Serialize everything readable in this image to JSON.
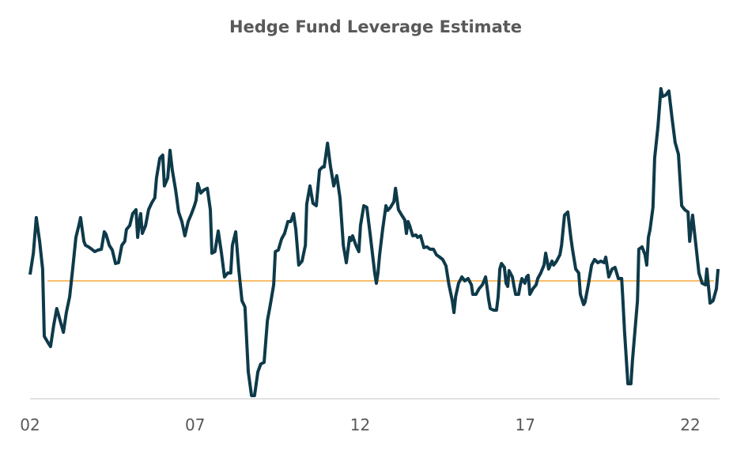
{
  "chart_data": {
    "type": "line",
    "title": "Hedge Fund Leverage Estimate",
    "xlabel": "",
    "ylabel": "",
    "x_tick_labels": [
      {
        "value": 2002,
        "label": "02"
      },
      {
        "value": 2007,
        "label": "07"
      },
      {
        "value": 2012,
        "label": "12"
      },
      {
        "value": 2017,
        "label": "17"
      },
      {
        "value": 2022,
        "label": "22"
      }
    ],
    "xlim": [
      2002,
      2022.9
    ],
    "ylim": [
      -15,
      26
    ],
    "y_axis_labels_shown": false,
    "grid": false,
    "legend": "none",
    "colors": {
      "series": "#0e3a4a",
      "average": "#f5a93a",
      "axis": "#d9d9d9",
      "text": "#595959"
    },
    "average_line": {
      "value": 0,
      "x": [
        2002.53,
        2022.72
      ]
    },
    "series": [
      {
        "x": [
          2002.0,
          2002.1,
          2002.19,
          2002.29,
          2002.38,
          2002.43,
          2002.53,
          2002.62,
          2002.72,
          2002.81,
          2002.91,
          2003.01,
          2003.1,
          2003.2,
          2003.29,
          2003.39,
          2003.49,
          2003.53,
          2003.63,
          2003.68,
          2003.77,
          2003.87,
          2003.96,
          2004.06,
          2004.16,
          2004.25,
          2004.3,
          2004.4,
          2004.49,
          2004.59,
          2004.68,
          2004.78,
          2004.87,
          2004.92,
          2005.02,
          2005.11,
          2005.21,
          2005.26,
          2005.31,
          2005.35,
          2005.4,
          2005.5,
          2005.59,
          2005.69,
          2005.78,
          2005.83,
          2005.93,
          2006.02,
          2006.07,
          2006.17,
          2006.24,
          2006.31,
          2006.41,
          2006.5,
          2006.6,
          2006.69,
          2006.79,
          2006.89,
          2006.98,
          2007.03,
          2007.08,
          2007.17,
          2007.27,
          2007.37,
          2007.46,
          2007.51,
          2007.6,
          2007.7,
          2007.8,
          2007.89,
          2007.99,
          2008.08,
          2008.13,
          2008.23,
          2008.32,
          2008.42,
          2008.51,
          2008.61,
          2008.71,
          2008.8,
          2008.9,
          2008.99,
          2009.09,
          2009.19,
          2009.28,
          2009.38,
          2009.43,
          2009.52,
          2009.62,
          2009.71,
          2009.81,
          2009.9,
          2009.98,
          2010.05,
          2010.14,
          2010.24,
          2010.34,
          2010.38,
          2010.48,
          2010.57,
          2010.67,
          2010.77,
          2010.86,
          2010.91,
          2011.01,
          2011.1,
          2011.2,
          2011.29,
          2011.39,
          2011.49,
          2011.58,
          2011.68,
          2011.72,
          2011.77,
          2011.87,
          2011.96,
          2012.01,
          2012.11,
          2012.2,
          2012.3,
          2012.44,
          2012.49,
          2012.54,
          2012.59,
          2012.68,
          2012.78,
          2012.83,
          2012.92,
          2013.02,
          2013.07,
          2013.16,
          2013.26,
          2013.35,
          2013.4,
          2013.45,
          2013.5,
          2013.59,
          2013.69,
          2013.74,
          2013.83,
          2013.93,
          2014.02,
          2014.12,
          2014.22,
          2014.31,
          2014.41,
          2014.5,
          2014.6,
          2014.69,
          2014.79,
          2014.84,
          2014.89,
          2014.98,
          2015.08,
          2015.17,
          2015.27,
          2015.37,
          2015.41,
          2015.51,
          2015.6,
          2015.7,
          2015.75,
          2015.8,
          2015.84,
          2015.89,
          2015.94,
          2016.04,
          2016.13,
          2016.18,
          2016.23,
          2016.28,
          2016.37,
          2016.42,
          2016.47,
          2016.51,
          2016.61,
          2016.66,
          2016.71,
          2016.8,
          2016.85,
          2016.9,
          2016.99,
          2017.04,
          2017.09,
          2017.14,
          2017.23,
          2017.33,
          2017.38,
          2017.47,
          2017.57,
          2017.62,
          2017.71,
          2017.81,
          2017.86,
          2017.95,
          2018.05,
          2018.1,
          2018.19,
          2018.29,
          2018.38,
          2018.43,
          2018.53,
          2018.62,
          2018.67,
          2018.77,
          2018.81,
          2018.91,
          2019.01,
          2019.1,
          2019.2,
          2019.29,
          2019.39,
          2019.44,
          2019.53,
          2019.63,
          2019.72,
          2019.82,
          2019.92,
          2019.96,
          2020.01,
          2020.11,
          2020.2,
          2020.25,
          2020.35,
          2020.4,
          2020.44,
          2020.54,
          2020.63,
          2020.68,
          2020.73,
          2020.78,
          2020.87,
          2020.92,
          2021.02,
          2021.11,
          2021.16,
          2021.26,
          2021.35,
          2021.45,
          2021.54,
          2021.64,
          2021.74,
          2021.83,
          2021.93,
          2021.98,
          2022.07,
          2022.17,
          2022.26,
          2022.36,
          2022.46,
          2022.5,
          2022.55,
          2022.6,
          2022.69,
          2022.79,
          2022.84
        ],
        "values": [
          0.8,
          3.5,
          8.0,
          5.0,
          1.5,
          -7.0,
          -7.7,
          -8.3,
          -5.5,
          -3.5,
          -5.0,
          -6.5,
          -4.0,
          -2.0,
          1.5,
          5.5,
          7.2,
          8.0,
          5.0,
          4.5,
          4.3,
          4.0,
          3.7,
          3.9,
          4.0,
          6.2,
          5.9,
          4.5,
          3.9,
          2.2,
          2.3,
          4.5,
          5.0,
          6.5,
          7.0,
          8.5,
          9.0,
          5.5,
          7.5,
          8.5,
          6.0,
          7.0,
          9.0,
          9.9,
          10.5,
          13.0,
          15.5,
          15.9,
          12.0,
          13.0,
          16.5,
          14.0,
          11.5,
          8.7,
          7.5,
          5.7,
          7.5,
          8.5,
          9.5,
          10.2,
          12.3,
          11.1,
          11.5,
          11.7,
          9.0,
          3.5,
          3.7,
          6.3,
          3.5,
          0.5,
          1.0,
          1.0,
          4.5,
          6.2,
          1.5,
          -2.5,
          -3.3,
          -11.5,
          -14.5,
          -14.5,
          -11.5,
          -10.5,
          -10.3,
          -5.0,
          -3.0,
          -0.5,
          3.7,
          3.9,
          5.3,
          6.0,
          7.5,
          7.5,
          8.5,
          6.5,
          2.0,
          2.5,
          4.5,
          9.7,
          12.0,
          9.8,
          9.5,
          14.0,
          14.4,
          14.4,
          17.4,
          14.5,
          12.0,
          13.3,
          10.5,
          4.5,
          2.3,
          5.5,
          5.1,
          5.7,
          4.5,
          3.7,
          7.0,
          9.5,
          9.3,
          6.0,
          1.0,
          -0.3,
          1.0,
          3.3,
          6.5,
          9.5,
          8.9,
          9.3,
          10.0,
          11.7,
          9.0,
          8.3,
          7.7,
          6.0,
          7.5,
          7.0,
          5.7,
          5.8,
          5.5,
          5.7,
          4.2,
          4.3,
          4.0,
          4.0,
          3.3,
          3.0,
          2.7,
          1.9,
          -0.5,
          -2.5,
          -4.0,
          -2.0,
          -0.3,
          0.5,
          0.0,
          0.3,
          -0.5,
          -1.7,
          -1.7,
          -1.0,
          -0.5,
          0.0,
          0.5,
          -0.7,
          -2.3,
          -3.5,
          -3.7,
          -3.7,
          -2.0,
          1.5,
          2.2,
          1.7,
          -0.3,
          -0.7,
          1.3,
          0.5,
          -0.7,
          -1.7,
          -1.7,
          -0.5,
          0.3,
          -0.3,
          0.5,
          0.7,
          -1.7,
          -1.0,
          -0.5,
          0.3,
          1.0,
          2.0,
          3.5,
          1.5,
          2.5,
          2.0,
          2.5,
          3.3,
          4.5,
          8.3,
          8.7,
          5.5,
          4.0,
          1.5,
          1.0,
          -1.7,
          -3.0,
          -2.7,
          -0.5,
          2.0,
          2.7,
          2.3,
          2.5,
          2.3,
          3.0,
          0.5,
          1.5,
          1.7,
          0.3,
          0.3,
          -2.5,
          -6.5,
          -13.0,
          -13.0,
          -10.0,
          -5.0,
          -2.5,
          4.0,
          4.3,
          3.3,
          2.0,
          5.5,
          6.5,
          9.3,
          15.5,
          19.5,
          24.3,
          23.3,
          23.5,
          24.0,
          20.5,
          17.5,
          16.0,
          9.5,
          9.0,
          8.7,
          5.0,
          8.3,
          4.5,
          1.0,
          -0.3,
          -0.5,
          1.5,
          -0.7,
          -2.8,
          -2.5,
          -1.0,
          1.5
        ]
      }
    ]
  }
}
